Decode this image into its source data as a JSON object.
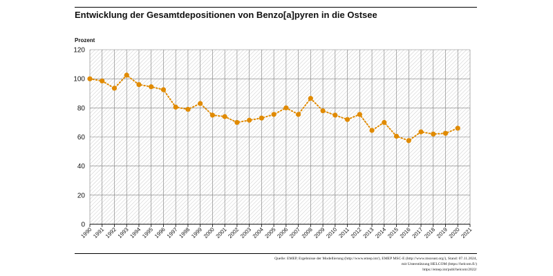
{
  "header": {
    "title": "Entwicklung der Gesamtdepositionen von Benzo[a]pyren in die Ostsee",
    "unit_label": "Prozent"
  },
  "source": {
    "line1": "Quelle: EMEP, Ergebnisse der Modellierung (http://www.emep.int/), EMEP MSC-E (http://www.msceast.org/), Stand: 07.11.2024,",
    "line2": "mit Unterstützung HELCOM (https://helcom.fi/)",
    "line3": "https://emep.int/publ/helcom/2022/"
  },
  "chart_data": {
    "type": "line",
    "title": "Entwicklung der Gesamtdepositionen von Benzo[a]pyren in die Ostsee",
    "xlabel": "",
    "ylabel": "Prozent",
    "ylim": [
      0,
      120
    ],
    "yticks": [
      0,
      20,
      40,
      60,
      80,
      100,
      120
    ],
    "xlim": [
      1990,
      2021
    ],
    "xticks": [
      "1990",
      "1991",
      "1992",
      "1993",
      "1994",
      "1995",
      "1996",
      "1997",
      "1998",
      "1999",
      "2000",
      "2001",
      "2002",
      "2003",
      "2004",
      "2005",
      "2006",
      "2007",
      "2008",
      "2009",
      "2010",
      "2011",
      "2012",
      "2013",
      "2014",
      "2015",
      "2016",
      "2017",
      "2018",
      "2019",
      "2020",
      "2021"
    ],
    "grid": true,
    "line_style": "dotted",
    "color": "#e08a00",
    "series": [
      {
        "x": [
          1990,
          1991,
          1992,
          1993,
          1994,
          1995,
          1996,
          1997,
          1998,
          1999,
          2000,
          2001,
          2002,
          2003,
          2004,
          2005,
          2006,
          2007,
          2008,
          2009,
          2010,
          2011,
          2012,
          2013,
          2014,
          2015,
          2016,
          2017,
          2018,
          2019,
          2020
        ],
        "values": [
          100,
          98.5,
          93.5,
          102.5,
          96,
          94.5,
          92.5,
          80.5,
          79,
          83,
          75,
          74,
          70,
          71.5,
          73,
          75.5,
          80,
          75.5,
          86.5,
          78,
          75,
          72,
          75.5,
          64.5,
          70,
          60.5,
          57.5,
          63.5,
          62,
          62.5,
          66
        ]
      }
    ]
  }
}
